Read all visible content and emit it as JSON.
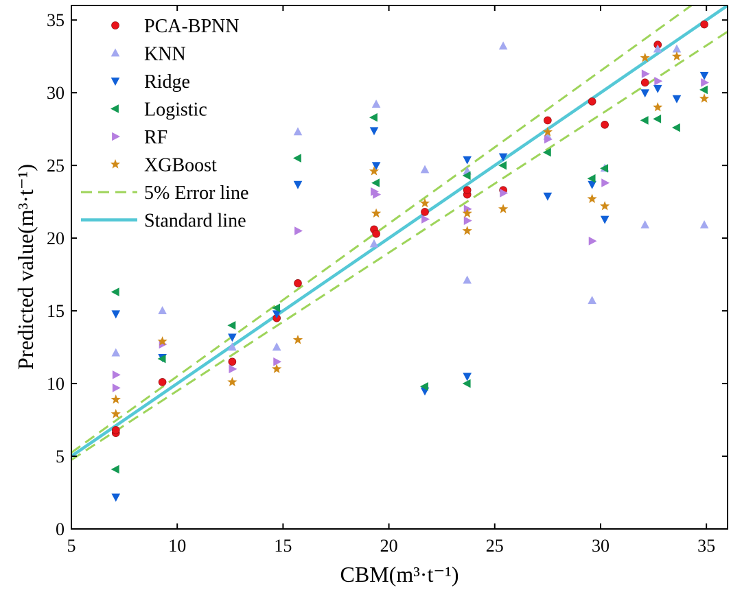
{
  "chart_data": {
    "type": "scatter",
    "xlabel": "CBM(m³·t⁻¹)",
    "ylabel": "Predicted value(m³·t⁻¹)",
    "xlim": [
      5,
      36
    ],
    "ylim": [
      0,
      36
    ],
    "xticks": [
      "5",
      "10",
      "15",
      "20",
      "25",
      "30",
      "35"
    ],
    "yticks": [
      "0",
      "5",
      "10",
      "15",
      "20",
      "25",
      "30",
      "35"
    ],
    "legend_position": "top-left",
    "colors": {
      "pca_bpnn": "#e8141b",
      "knn": "#a3a8f0",
      "ridge": "#1060d8",
      "logistic": "#139a52",
      "rf": "#b57ee0",
      "xgboost": "#d08a18",
      "error_line": "#9ed45a",
      "standard_line": "#55c8d6"
    },
    "series": [
      {
        "name": "PCA-BPNN",
        "marker": "circle",
        "color_key": "pca_bpnn",
        "x": [
          7.1,
          7.1,
          9.3,
          12.6,
          14.7,
          15.7,
          19.3,
          19.4,
          21.7,
          23.7,
          23.7,
          25.4,
          27.5,
          29.6,
          30.2,
          32.1,
          32.7,
          34.9
        ],
        "y": [
          6.6,
          6.8,
          10.1,
          11.5,
          14.5,
          16.9,
          20.6,
          20.3,
          21.8,
          23.0,
          23.3,
          23.3,
          28.1,
          29.4,
          27.8,
          30.7,
          33.3,
          34.7
        ]
      },
      {
        "name": "KNN",
        "marker": "triangle-up",
        "color_key": "knn",
        "x": [
          7.1,
          9.3,
          12.6,
          14.7,
          15.7,
          19.3,
          19.4,
          21.7,
          23.7,
          23.7,
          25.4,
          27.5,
          29.6,
          30.2,
          32.1,
          32.7,
          33.6,
          34.9
        ],
        "y": [
          12.1,
          15.0,
          12.5,
          12.5,
          27.3,
          19.6,
          29.2,
          24.7,
          17.1,
          24.6,
          33.2,
          27.0,
          15.7,
          24.8,
          20.9,
          33.0,
          33.0,
          20.9
        ]
      },
      {
        "name": "Ridge",
        "marker": "triangle-down",
        "color_key": "ridge",
        "x": [
          7.1,
          7.1,
          9.3,
          12.6,
          14.7,
          15.7,
          19.3,
          19.4,
          21.7,
          23.7,
          23.7,
          25.4,
          27.5,
          29.6,
          30.2,
          32.1,
          32.7,
          33.6,
          34.9
        ],
        "y": [
          14.8,
          2.2,
          11.8,
          13.2,
          14.8,
          23.7,
          27.4,
          25.0,
          9.5,
          10.5,
          25.4,
          25.6,
          22.9,
          23.7,
          21.3,
          30.0,
          30.3,
          29.6,
          31.2
        ]
      },
      {
        "name": "Logistic",
        "marker": "triangle-left",
        "color_key": "logistic",
        "x": [
          7.1,
          7.1,
          9.3,
          12.6,
          14.7,
          15.7,
          19.3,
          19.4,
          21.7,
          23.7,
          23.7,
          25.4,
          27.5,
          29.6,
          30.2,
          32.1,
          32.7,
          33.6,
          34.9
        ],
        "y": [
          16.3,
          4.1,
          11.7,
          14.0,
          15.2,
          25.5,
          28.3,
          23.8,
          9.8,
          10.0,
          24.3,
          25.0,
          25.9,
          24.1,
          24.8,
          28.1,
          28.2,
          27.6,
          30.2
        ]
      },
      {
        "name": "RF",
        "marker": "triangle-right",
        "color_key": "rf",
        "x": [
          7.1,
          7.1,
          9.3,
          12.6,
          14.7,
          15.7,
          19.3,
          19.4,
          21.7,
          23.7,
          23.7,
          25.4,
          27.5,
          29.6,
          30.2,
          32.1,
          32.7,
          34.9
        ],
        "y": [
          10.6,
          9.7,
          12.7,
          11.0,
          11.5,
          20.5,
          23.2,
          23.0,
          21.3,
          22.0,
          21.2,
          23.1,
          26.8,
          19.8,
          23.8,
          31.3,
          30.8,
          30.7
        ]
      },
      {
        "name": "XGBoost",
        "marker": "star",
        "color_key": "xgboost",
        "x": [
          7.1,
          7.1,
          9.3,
          12.6,
          14.7,
          15.7,
          19.3,
          19.4,
          21.7,
          23.7,
          23.7,
          25.4,
          27.5,
          29.6,
          30.2,
          32.1,
          32.7,
          33.6,
          34.9
        ],
        "y": [
          8.9,
          7.9,
          12.9,
          10.1,
          11.0,
          13.0,
          24.6,
          21.7,
          22.4,
          21.7,
          20.5,
          22.0,
          27.3,
          22.7,
          22.2,
          32.4,
          29.0,
          32.5,
          29.6
        ]
      }
    ],
    "lines": [
      {
        "name": "5% Error line",
        "style": "dashed",
        "color_key": "error_line",
        "segments": [
          {
            "x": [
              5,
              36
            ],
            "y": [
              5.25,
              37.8
            ]
          },
          {
            "x": [
              5,
              36
            ],
            "y": [
              4.75,
              34.2
            ]
          }
        ]
      },
      {
        "name": "Standard line",
        "style": "solid",
        "color_key": "standard_line",
        "segments": [
          {
            "x": [
              5,
              36
            ],
            "y": [
              5,
              36
            ]
          }
        ]
      }
    ]
  }
}
